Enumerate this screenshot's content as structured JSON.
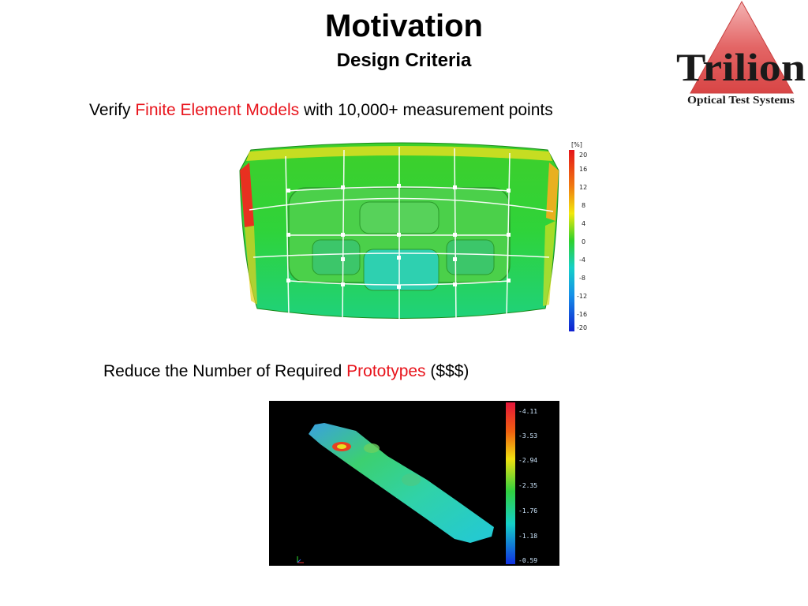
{
  "slide": {
    "title": "Motivation",
    "subtitle": "Design Criteria",
    "line1": {
      "pre": "Verify ",
      "highlight": "Finite Element Models",
      "post": " with 10,000+ measurement points"
    },
    "line2": {
      "pre": "Reduce the Number of Required ",
      "highlight": "Prototypes",
      "post": " ($$$)"
    },
    "highlight_color": "#e8141c"
  },
  "logo": {
    "name": "Trilion",
    "tagline": "Optical Test Systems",
    "triangle_color": "#e05a5a"
  },
  "figure1": {
    "unit": "[%]",
    "scale_labels": [
      "20",
      "16",
      "12",
      "8",
      "4",
      "0",
      "-4",
      "-8",
      "-12",
      "-16",
      "-20"
    ]
  },
  "figure2": {
    "scale_labels": [
      "-4.11",
      "-3.53",
      "-2.94",
      "-2.35",
      "-1.76",
      "-1.18",
      "-0.59"
    ]
  }
}
